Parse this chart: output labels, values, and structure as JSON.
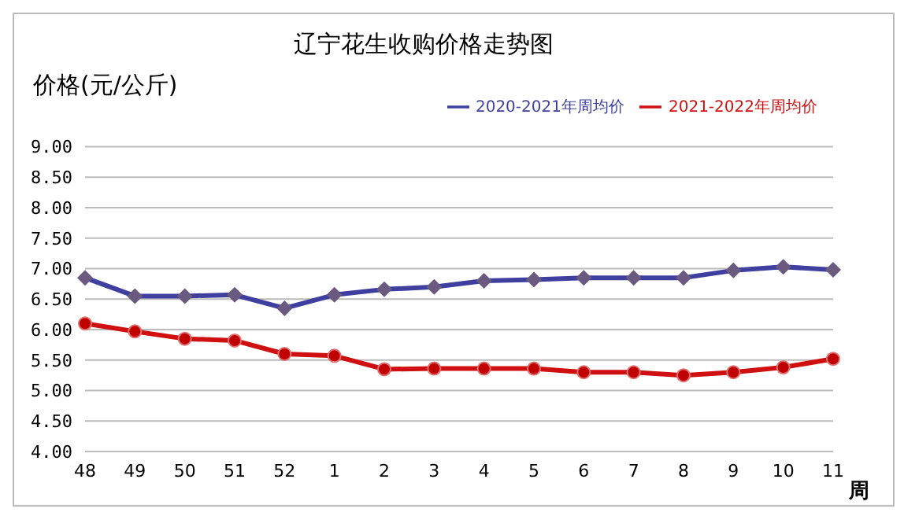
{
  "chart_data": {
    "type": "line",
    "title": "辽宁花生收购价格走势图",
    "ylabel": "价格(元/公斤)",
    "xlabel": "周",
    "categories": [
      "48",
      "49",
      "50",
      "51",
      "52",
      "1",
      "2",
      "3",
      "4",
      "5",
      "6",
      "7",
      "8",
      "9",
      "10",
      "11"
    ],
    "series": [
      {
        "name": "2020-2021年周均价",
        "color": "#3f3f9f",
        "marker": "diamond",
        "values": [
          6.85,
          6.55,
          6.55,
          6.57,
          6.35,
          6.57,
          6.66,
          6.7,
          6.8,
          6.82,
          6.85,
          6.85,
          6.85,
          6.97,
          7.03,
          6.98
        ]
      },
      {
        "name": "2021-2022年周均价",
        "color": "#d01010",
        "marker": "circle",
        "values": [
          6.1,
          5.97,
          5.85,
          5.82,
          5.6,
          5.57,
          5.35,
          5.36,
          5.36,
          5.36,
          5.3,
          5.3,
          5.25,
          5.3,
          5.38,
          5.52
        ]
      }
    ],
    "ylim": [
      4,
      9
    ],
    "yticks": [
      {
        "value": 4,
        "label": "4.00"
      },
      {
        "value": 4.5,
        "label": "4.50"
      },
      {
        "value": 5,
        "label": "5.00"
      },
      {
        "value": 5.5,
        "label": "5.50"
      },
      {
        "value": 6,
        "label": "6.00"
      },
      {
        "value": 6.5,
        "label": "6.50"
      },
      {
        "value": 7,
        "label": "7.00"
      },
      {
        "value": 7.5,
        "label": "7.50"
      },
      {
        "value": 8,
        "label": "8.00"
      },
      {
        "value": 8.5,
        "label": "8.50"
      },
      {
        "value": 9,
        "label": "9.00"
      }
    ],
    "grid": "y",
    "legend": "top right"
  }
}
